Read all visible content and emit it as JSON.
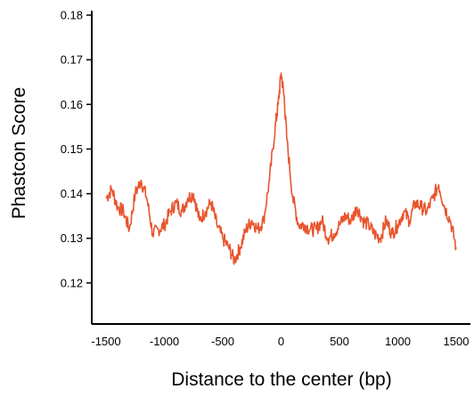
{
  "chart_data": {
    "type": "line",
    "title": "",
    "xlabel": "Distance to the center (bp)",
    "ylabel": "Phastcon Score",
    "xlim": [
      -1500,
      1500
    ],
    "ylim": [
      0.11,
      0.18
    ],
    "x_ticks": [
      -1500,
      -1000,
      -500,
      0,
      500,
      1000,
      1500
    ],
    "x_tick_labels": [
      "-1500",
      "-1000",
      "-500",
      "0",
      "500",
      "1000",
      "1500"
    ],
    "y_ticks": [
      0.12,
      0.13,
      0.14,
      0.15,
      0.16,
      0.17,
      0.18
    ],
    "y_tick_labels": [
      "0.12",
      "0.13",
      "0.14",
      "0.15",
      "0.16",
      "0.17",
      "0.18"
    ],
    "grid": false,
    "legend": "none",
    "line_color": "#e8552d",
    "series": [
      {
        "x": [
          -1500,
          -1450,
          -1400,
          -1350,
          -1300,
          -1250,
          -1200,
          -1150,
          -1100,
          -1050,
          -1000,
          -950,
          -900,
          -850,
          -800,
          -750,
          -700,
          -650,
          -600,
          -550,
          -500,
          -450,
          -400,
          -350,
          -300,
          -250,
          -200,
          -150,
          -100,
          -50,
          -25,
          0,
          25,
          50,
          100,
          150,
          200,
          250,
          300,
          350,
          400,
          450,
          500,
          550,
          600,
          650,
          700,
          750,
          800,
          850,
          900,
          950,
          1000,
          1050,
          1100,
          1150,
          1200,
          1250,
          1300,
          1350,
          1400,
          1450,
          1500
        ],
        "values": [
          0.139,
          0.141,
          0.137,
          0.136,
          0.132,
          0.14,
          0.143,
          0.139,
          0.131,
          0.132,
          0.133,
          0.136,
          0.138,
          0.136,
          0.139,
          0.14,
          0.134,
          0.136,
          0.138,
          0.133,
          0.13,
          0.128,
          0.125,
          0.128,
          0.132,
          0.134,
          0.132,
          0.134,
          0.143,
          0.155,
          0.16,
          0.167,
          0.162,
          0.152,
          0.139,
          0.133,
          0.133,
          0.132,
          0.132,
          0.134,
          0.13,
          0.131,
          0.133,
          0.135,
          0.134,
          0.137,
          0.134,
          0.133,
          0.131,
          0.13,
          0.134,
          0.131,
          0.133,
          0.136,
          0.134,
          0.138,
          0.137,
          0.136,
          0.139,
          0.142,
          0.137,
          0.134,
          0.128
        ]
      }
    ]
  }
}
